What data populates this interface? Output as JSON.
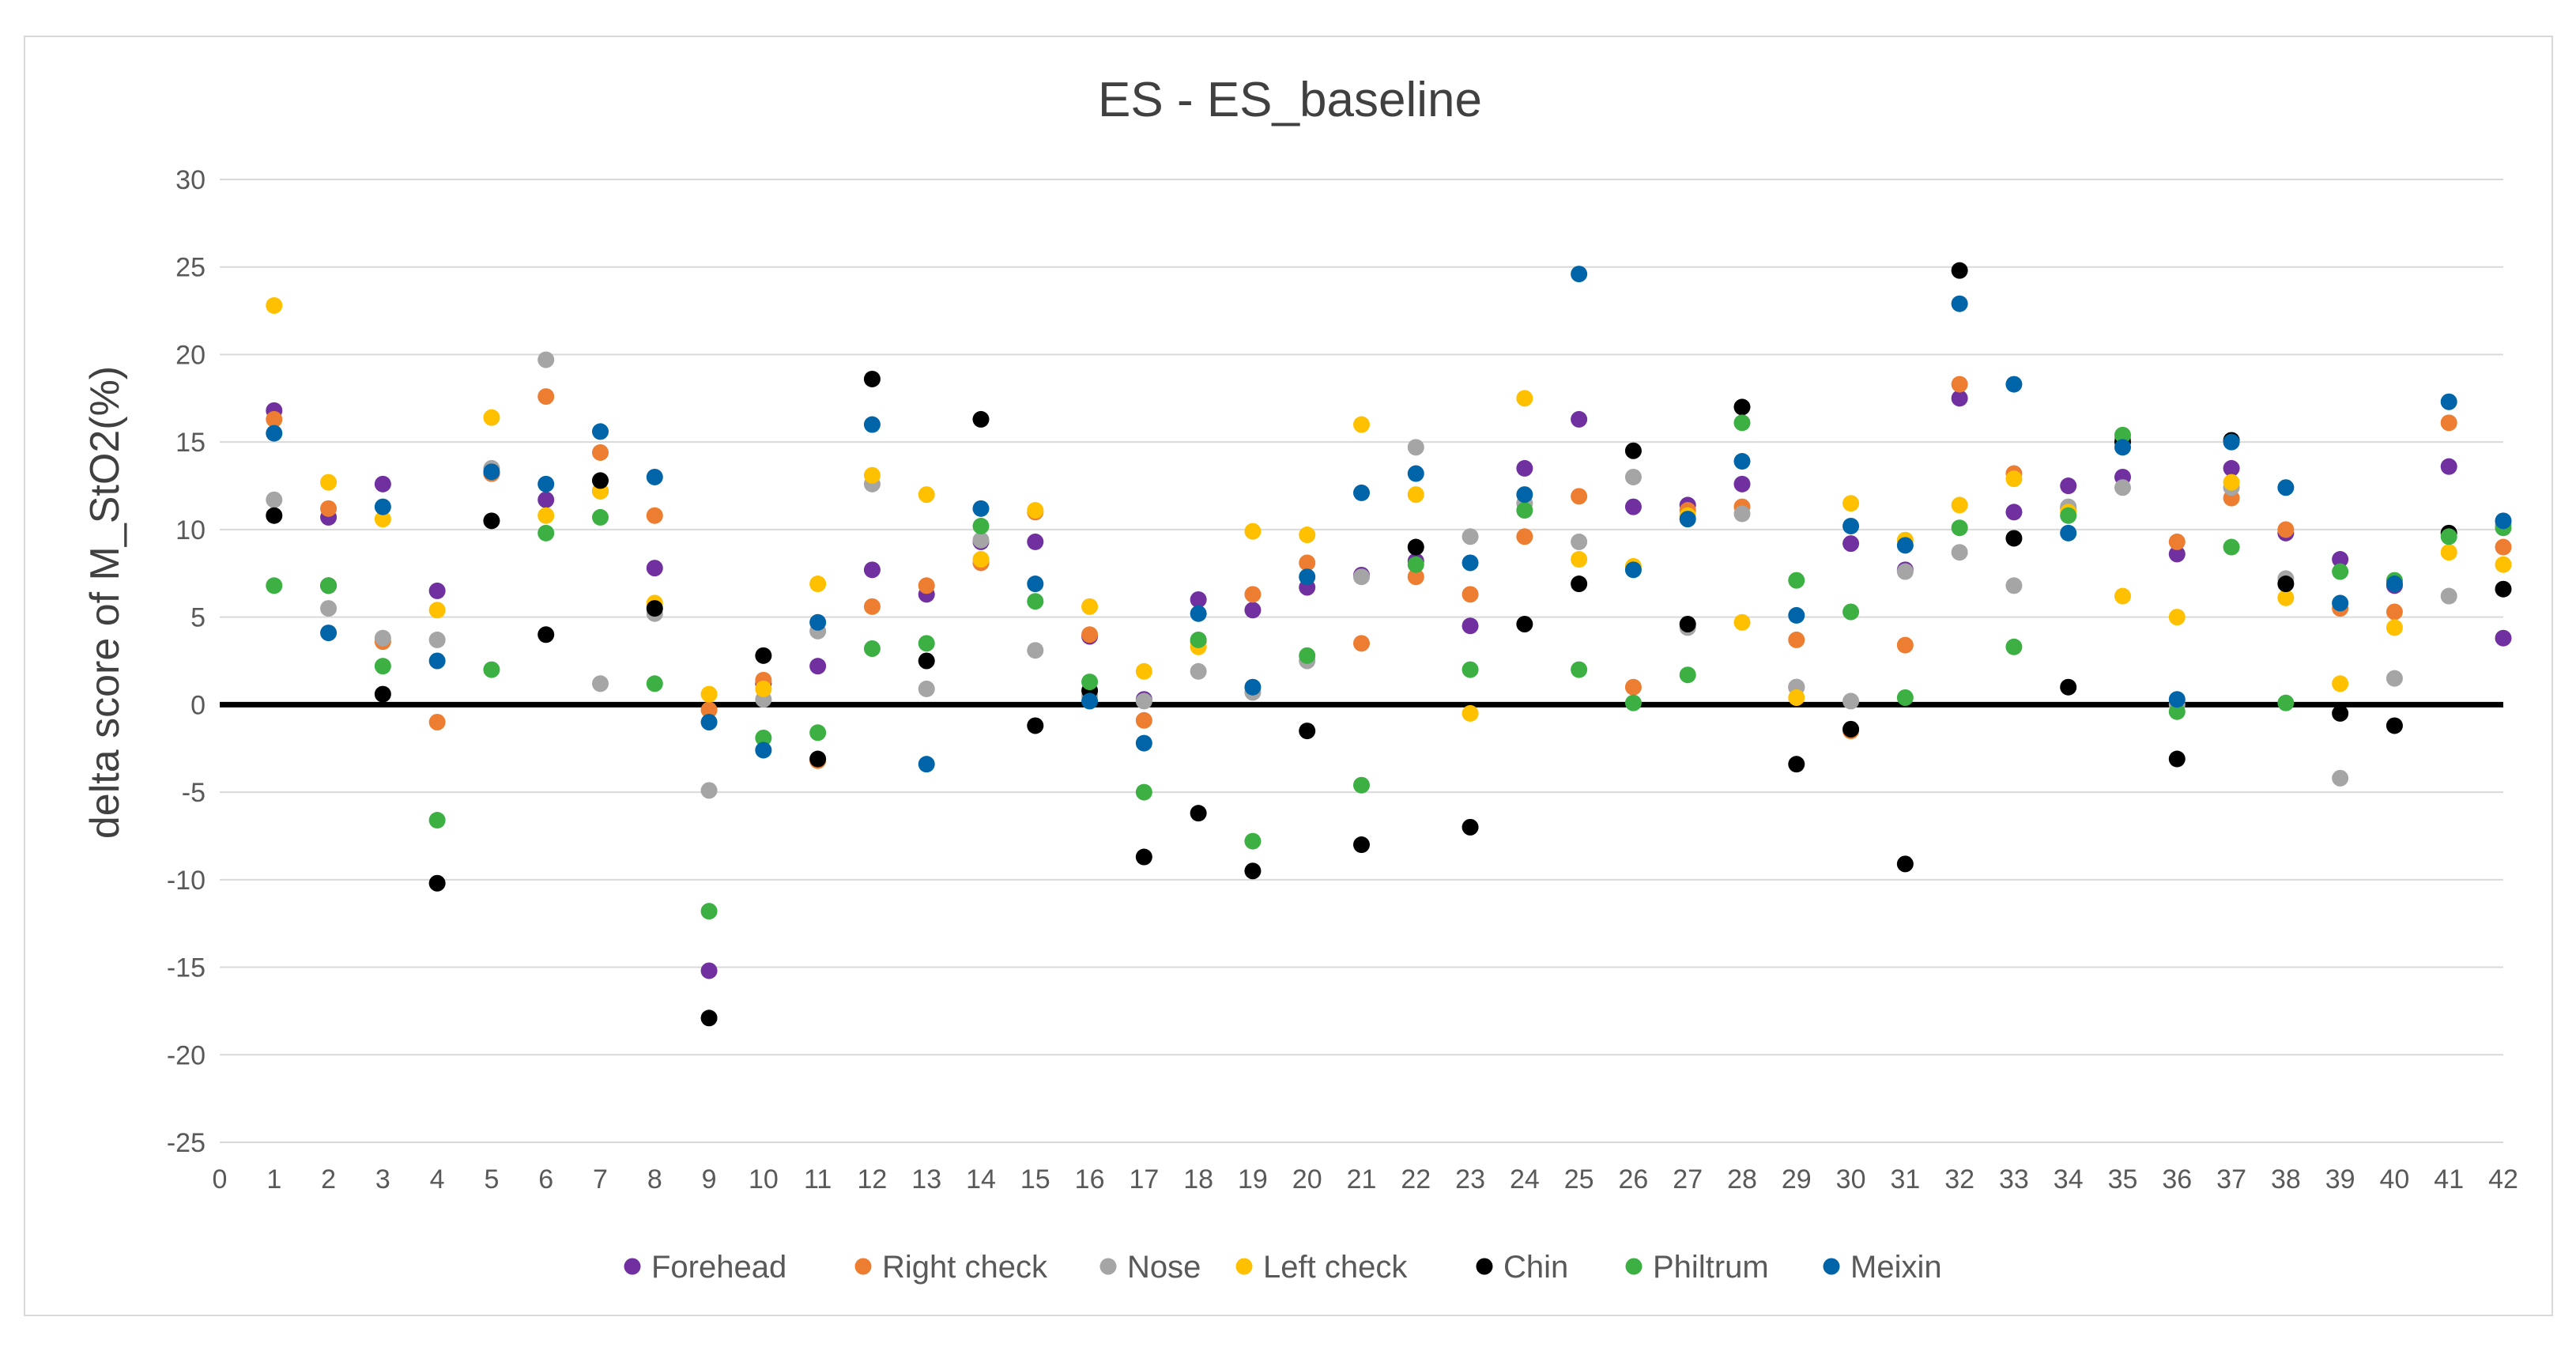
{
  "chart_data": {
    "type": "scatter",
    "title": "ES - ES_baseline",
    "xlabel": "",
    "ylabel": "delta score of M_StO2(%)",
    "xlim": [
      0,
      42
    ],
    "ylim": [
      -25,
      30
    ],
    "xticks": [
      0,
      1,
      2,
      3,
      4,
      5,
      6,
      7,
      8,
      9,
      10,
      11,
      12,
      13,
      14,
      15,
      16,
      17,
      18,
      19,
      20,
      21,
      22,
      23,
      24,
      25,
      26,
      27,
      28,
      29,
      30,
      31,
      32,
      33,
      34,
      35,
      36,
      37,
      38,
      39,
      40,
      41,
      42
    ],
    "yticks": [
      -25,
      -20,
      -15,
      -10,
      -5,
      0,
      5,
      10,
      15,
      20,
      25,
      30
    ],
    "grid": "horizontal",
    "zero_line": true,
    "legend_position": "bottom",
    "series": [
      {
        "name": "Forehead",
        "color": "#7030A0",
        "x": [
          1,
          2,
          3,
          4,
          5,
          6,
          7,
          8,
          9,
          10,
          11,
          12,
          13,
          14,
          15,
          16,
          17,
          18,
          19,
          20,
          21,
          22,
          23,
          24,
          25,
          26,
          27,
          28,
          29,
          30,
          31,
          32,
          33,
          34,
          35,
          36,
          37,
          38,
          39,
          40,
          41,
          42
        ],
        "y": [
          16.8,
          10.7,
          12.6,
          6.5,
          13.2,
          11.7,
          12.2,
          7.8,
          -15.2,
          1.2,
          2.2,
          7.7,
          6.3,
          9.3,
          9.3,
          3.9,
          0.3,
          6.0,
          5.4,
          6.7,
          7.4,
          8.2,
          4.5,
          13.5,
          16.3,
          11.3,
          11.4,
          12.6,
          1.0,
          9.2,
          7.7,
          17.5,
          11.0,
          12.5,
          13.0,
          8.6,
          13.5,
          9.8,
          8.3,
          6.8,
          13.6,
          3.8
        ]
      },
      {
        "name": "Right check",
        "color": "#ED7D31",
        "x": [
          1,
          2,
          3,
          4,
          5,
          6,
          7,
          8,
          9,
          10,
          11,
          12,
          13,
          14,
          15,
          16,
          17,
          18,
          19,
          20,
          21,
          22,
          23,
          24,
          25,
          26,
          27,
          28,
          29,
          30,
          31,
          32,
          33,
          34,
          35,
          36,
          37,
          38,
          39,
          40,
          41,
          42
        ],
        "y": [
          16.3,
          11.2,
          3.6,
          -1.0,
          13.2,
          17.6,
          14.4,
          10.8,
          -0.3,
          1.4,
          -3.2,
          5.6,
          6.8,
          8.1,
          11.0,
          4.0,
          -0.9,
          3.6,
          6.3,
          8.1,
          3.5,
          7.3,
          6.3,
          9.6,
          11.9,
          1.0,
          11.1,
          11.3,
          3.7,
          -1.5,
          3.4,
          18.3,
          13.2,
          11.2,
          15.2,
          9.3,
          11.8,
          10.0,
          5.5,
          5.3,
          16.1,
          9.0
        ]
      },
      {
        "name": "Nose",
        "color": "#A5A5A5",
        "x": [
          1,
          2,
          3,
          4,
          5,
          6,
          7,
          8,
          9,
          10,
          11,
          12,
          13,
          14,
          15,
          16,
          17,
          18,
          19,
          20,
          21,
          22,
          23,
          24,
          25,
          26,
          27,
          28,
          29,
          30,
          31,
          32,
          33,
          34,
          35,
          36,
          37,
          38,
          39,
          40,
          41,
          42
        ],
        "y": [
          11.7,
          5.5,
          3.8,
          3.7,
          13.5,
          19.7,
          1.2,
          5.2,
          -4.9,
          0.3,
          4.2,
          12.6,
          0.9,
          9.4,
          3.1,
          0.5,
          0.2,
          1.9,
          0.7,
          2.5,
          7.3,
          14.7,
          9.6,
          11.5,
          9.3,
          13.0,
          4.4,
          10.9,
          1.0,
          0.2,
          7.6,
          8.7,
          6.8,
          11.3,
          12.4,
          0.0,
          12.4,
          7.2,
          -4.2,
          1.5,
          6.2,
          10.3
        ]
      },
      {
        "name": "Left check",
        "color": "#FFC000",
        "x": [
          1,
          2,
          3,
          4,
          5,
          6,
          7,
          8,
          9,
          10,
          11,
          12,
          13,
          14,
          15,
          16,
          17,
          18,
          19,
          20,
          21,
          22,
          23,
          24,
          25,
          26,
          27,
          28,
          29,
          30,
          31,
          32,
          33,
          34,
          35,
          36,
          37,
          38,
          39,
          40,
          41,
          42
        ],
        "y": [
          22.8,
          12.7,
          10.6,
          5.4,
          16.4,
          10.8,
          12.2,
          5.8,
          0.6,
          0.9,
          6.9,
          13.1,
          12.0,
          8.3,
          11.1,
          5.6,
          1.9,
          3.3,
          9.9,
          9.7,
          16.0,
          12.0,
          -0.5,
          17.5,
          8.3,
          7.9,
          10.8,
          4.7,
          0.4,
          11.5,
          9.4,
          11.4,
          12.9,
          11.0,
          6.2,
          5.0,
          12.7,
          6.1,
          1.2,
          4.4,
          8.7,
          8.0
        ]
      },
      {
        "name": "Chin",
        "color": "#000000",
        "x": [
          1,
          2,
          3,
          4,
          5,
          6,
          7,
          8,
          9,
          10,
          11,
          12,
          13,
          14,
          15,
          16,
          17,
          18,
          19,
          20,
          21,
          22,
          23,
          24,
          25,
          26,
          27,
          28,
          29,
          30,
          31,
          32,
          33,
          34,
          35,
          36,
          37,
          38,
          39,
          40,
          41,
          42
        ],
        "y": [
          10.8,
          6.8,
          0.6,
          -10.2,
          10.5,
          4.0,
          12.8,
          5.5,
          -17.9,
          2.8,
          -3.1,
          18.6,
          2.5,
          16.3,
          -1.2,
          0.8,
          -8.7,
          -6.2,
          -9.5,
          -1.5,
          -8.0,
          9.0,
          -7.0,
          4.6,
          6.9,
          14.5,
          4.6,
          17.0,
          -3.4,
          -1.4,
          -9.1,
          24.8,
          9.5,
          1.0,
          15.0,
          -3.1,
          15.1,
          6.9,
          -0.5,
          -1.2,
          9.8,
          6.6
        ]
      },
      {
        "name": "Philtrum",
        "color": "#3CB043",
        "x": [
          1,
          2,
          3,
          4,
          5,
          6,
          7,
          8,
          9,
          10,
          11,
          12,
          13,
          14,
          15,
          16,
          17,
          18,
          19,
          20,
          21,
          22,
          23,
          24,
          25,
          26,
          27,
          28,
          29,
          30,
          31,
          32,
          33,
          34,
          35,
          36,
          37,
          38,
          39,
          40,
          41,
          42
        ],
        "y": [
          6.8,
          6.8,
          2.2,
          -6.6,
          2.0,
          9.8,
          10.7,
          1.2,
          -11.8,
          -1.9,
          -1.6,
          3.2,
          3.5,
          10.2,
          5.9,
          1.3,
          -5.0,
          3.7,
          -7.8,
          2.8,
          -4.6,
          8.0,
          2.0,
          11.1,
          2.0,
          0.1,
          1.7,
          16.1,
          7.1,
          5.3,
          0.4,
          10.1,
          3.3,
          10.8,
          15.4,
          -0.4,
          9.0,
          0.1,
          7.6,
          7.1,
          9.6,
          10.1
        ]
      },
      {
        "name": "Meixin",
        "color": "#0064A8",
        "x": [
          1,
          2,
          3,
          4,
          5,
          6,
          7,
          8,
          9,
          10,
          11,
          12,
          13,
          14,
          15,
          16,
          17,
          18,
          19,
          20,
          21,
          22,
          23,
          24,
          25,
          26,
          27,
          28,
          29,
          30,
          31,
          32,
          33,
          34,
          35,
          36,
          37,
          38,
          39,
          40,
          41,
          42
        ],
        "y": [
          15.5,
          4.1,
          11.3,
          2.5,
          13.3,
          12.6,
          15.6,
          13.0,
          -1.0,
          -2.6,
          4.7,
          16.0,
          -3.4,
          11.2,
          6.9,
          0.2,
          -2.2,
          5.2,
          1.0,
          7.3,
          12.1,
          13.2,
          8.1,
          12.0,
          24.6,
          7.7,
          10.6,
          13.9,
          5.1,
          10.2,
          9.1,
          22.9,
          18.3,
          9.8,
          14.7,
          0.3,
          15.0,
          12.4,
          5.8,
          6.9,
          17.3,
          10.5
        ]
      }
    ]
  }
}
